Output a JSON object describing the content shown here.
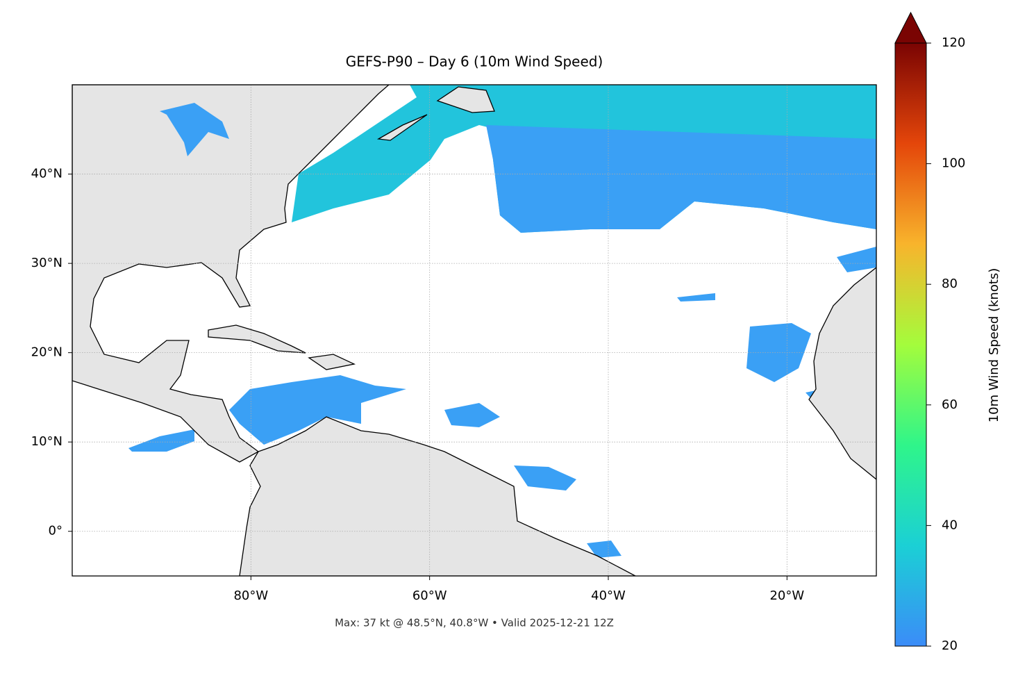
{
  "chart_data": {
    "type": "map",
    "title": "GEFS-P90 – Day 6 (10m Wind Speed)",
    "xlim": [
      -100,
      -10
    ],
    "ylim": [
      -5,
      50
    ],
    "xticks": [
      {
        "value": -80,
        "label": "80°W"
      },
      {
        "value": -60,
        "label": "60°W"
      },
      {
        "value": -40,
        "label": "40°W"
      },
      {
        "value": -20,
        "label": "20°W"
      }
    ],
    "yticks": [
      {
        "value": 0,
        "label": "0°"
      },
      {
        "value": 10,
        "label": "10°N"
      },
      {
        "value": 20,
        "label": "20°N"
      },
      {
        "value": 30,
        "label": "30°N"
      },
      {
        "value": 40,
        "label": "40°N"
      }
    ],
    "grid": true,
    "colorbar": {
      "label": "10m Wind Speed (knots)",
      "lim": [
        20,
        120
      ],
      "ticks": [
        20,
        40,
        60,
        80,
        100,
        120
      ],
      "colors": [
        "#3b8cf8",
        "#1bd0d5",
        "#2ff58a",
        "#a4fc3c",
        "#f8b42c",
        "#e4460a",
        "#7a0403"
      ]
    },
    "footnote": "Max: 37 kt @ 48.5°N, 40.8°W • Valid 2025-12-21 12Z"
  }
}
